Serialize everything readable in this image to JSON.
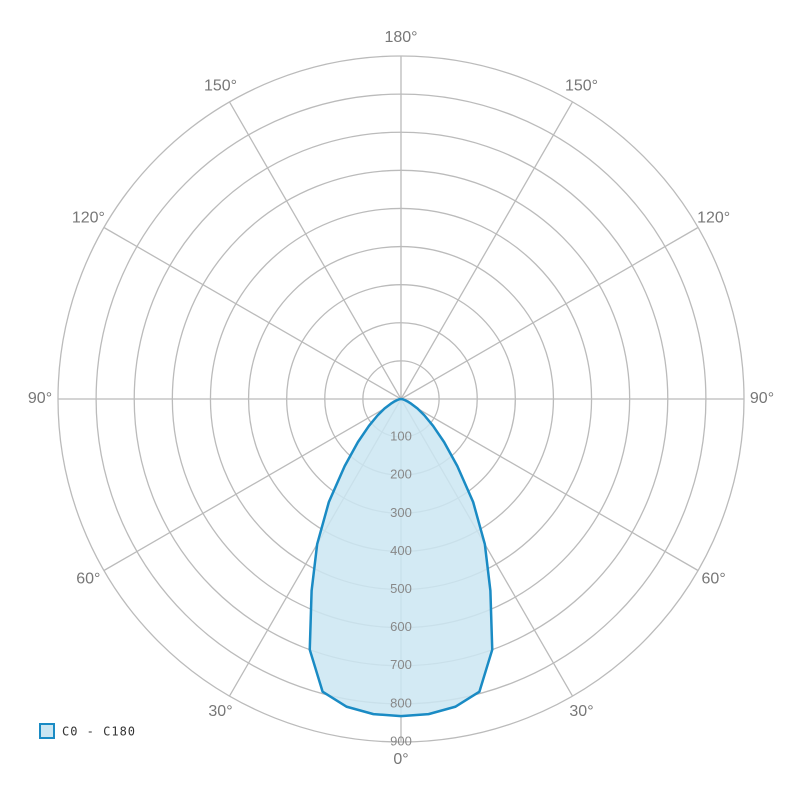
{
  "chart_data": {
    "type": "polar",
    "legend": "C0 - C180",
    "color": "#1a8bc4",
    "fill": "#cbe6f2",
    "x": [
      0,
      5,
      10,
      15,
      20,
      25,
      30,
      35,
      40,
      45,
      50,
      55,
      60,
      65,
      70,
      75,
      80,
      85,
      90
    ],
    "values": [
      832,
      830,
      820,
      795,
      700,
      555,
      440,
      330,
      230,
      160,
      110,
      75,
      50,
      30,
      18,
      10,
      5,
      2,
      0
    ],
    "rlim": [
      0,
      900
    ],
    "rticks": [
      100,
      200,
      300,
      400,
      500,
      600,
      700,
      800,
      900
    ],
    "angle_ticks": [
      {
        "value": 0,
        "label": "0°"
      },
      {
        "value": 30,
        "label": "30°"
      },
      {
        "value": 60,
        "label": "60°"
      },
      {
        "value": 90,
        "label": "90°"
      },
      {
        "value": 120,
        "label": "120°"
      },
      {
        "value": 150,
        "label": "150°"
      },
      {
        "value": 180,
        "label": "180°"
      }
    ],
    "grid": true
  }
}
